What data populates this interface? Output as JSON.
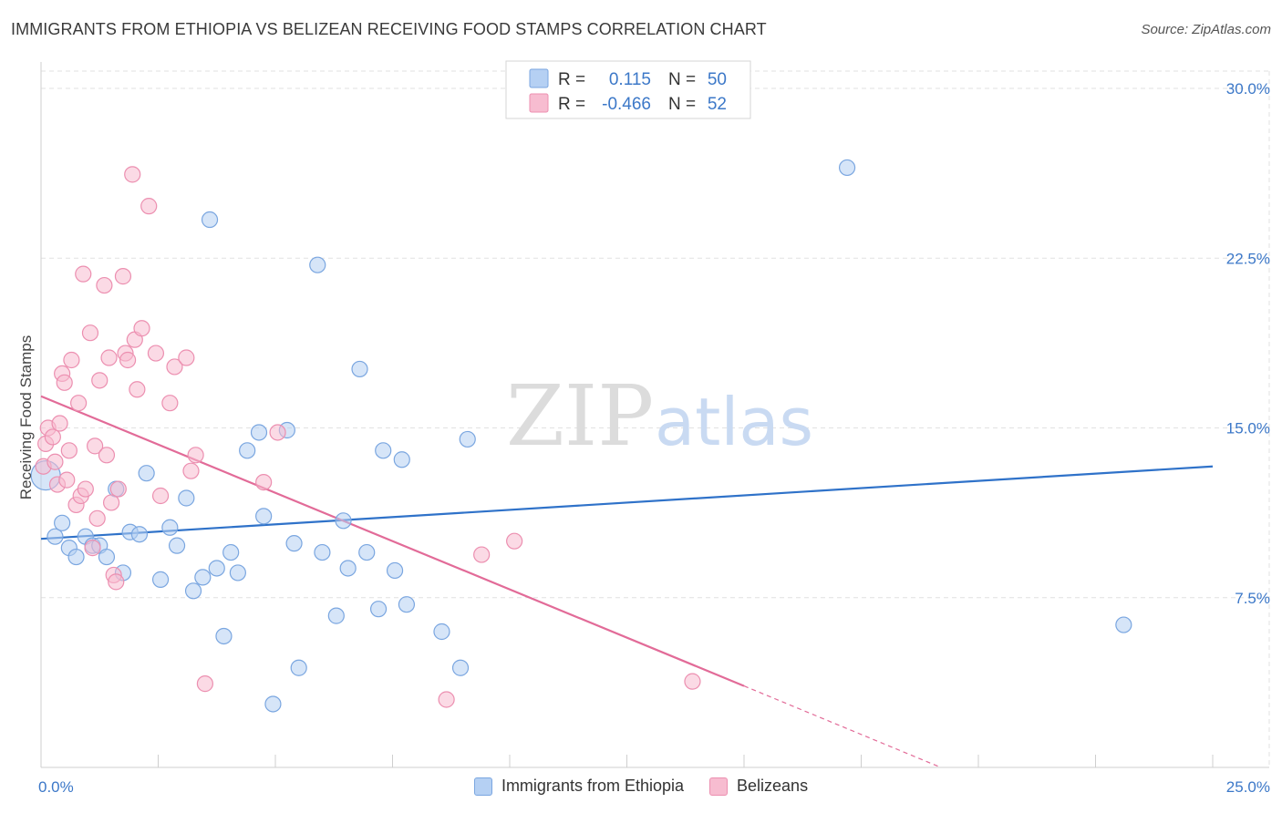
{
  "header": {
    "title": "IMMIGRANTS FROM ETHIOPIA VS BELIZEAN RECEIVING FOOD STAMPS CORRELATION CHART",
    "source": "Source: ZipAtlas.com"
  },
  "watermark": {
    "zip": "ZIP",
    "atlas": "atlas"
  },
  "colors": {
    "blue_fill": "#b5d0f3",
    "blue_stroke": "#7aa6e0",
    "blue_line": "#2f72c9",
    "pink_fill": "#f7bcd0",
    "pink_stroke": "#ec8fb0",
    "pink_line": "#e26b98",
    "tick_label": "#3c78c8",
    "grid": "#e1e1e1"
  },
  "legend": {
    "rows": [
      {
        "r_label": "R =",
        "r_value": "0.115",
        "n_label": "N =",
        "n_value": "50"
      },
      {
        "r_label": "R =",
        "r_value": "-0.466",
        "n_label": "N =",
        "n_value": "52"
      }
    ]
  },
  "chart_data": {
    "type": "scatter",
    "title": "IMMIGRANTS FROM ETHIOPIA VS BELIZEAN RECEIVING FOOD STAMPS CORRELATION CHART",
    "xlabel": "",
    "ylabel": "Receiving Food Stamps",
    "xlim": [
      0,
      25
    ],
    "ylim": [
      0,
      30
    ],
    "x_tick_labels": [
      "0.0%",
      "25.0%"
    ],
    "y_ticks": [
      7.5,
      15.0,
      22.5,
      30.0
    ],
    "y_tick_labels": [
      "7.5%",
      "15.0%",
      "22.5%",
      "30.0%"
    ],
    "grid": true,
    "series": [
      {
        "name": "Immigrants from Ethiopia",
        "r": 0.115,
        "n": 50,
        "trend": {
          "x": [
            0,
            25
          ],
          "y": [
            10.1,
            13.3
          ]
        },
        "points": [
          {
            "x": 0.1,
            "y": 12.9,
            "big": true
          },
          {
            "x": 0.3,
            "y": 10.2
          },
          {
            "x": 0.45,
            "y": 10.8
          },
          {
            "x": 0.6,
            "y": 9.7
          },
          {
            "x": 0.75,
            "y": 9.3
          },
          {
            "x": 0.95,
            "y": 10.2
          },
          {
            "x": 1.1,
            "y": 9.8
          },
          {
            "x": 1.25,
            "y": 9.8
          },
          {
            "x": 1.4,
            "y": 9.3
          },
          {
            "x": 1.6,
            "y": 12.3
          },
          {
            "x": 1.75,
            "y": 8.6
          },
          {
            "x": 1.9,
            "y": 10.4
          },
          {
            "x": 2.1,
            "y": 10.3
          },
          {
            "x": 2.25,
            "y": 13.0
          },
          {
            "x": 2.55,
            "y": 8.3
          },
          {
            "x": 2.75,
            "y": 10.6
          },
          {
            "x": 2.9,
            "y": 9.8
          },
          {
            "x": 3.1,
            "y": 11.9
          },
          {
            "x": 3.25,
            "y": 7.8
          },
          {
            "x": 3.45,
            "y": 8.4
          },
          {
            "x": 3.6,
            "y": 24.2
          },
          {
            "x": 3.75,
            "y": 8.8
          },
          {
            "x": 3.9,
            "y": 5.8
          },
          {
            "x": 4.05,
            "y": 9.5
          },
          {
            "x": 4.2,
            "y": 8.6
          },
          {
            "x": 4.4,
            "y": 14.0
          },
          {
            "x": 4.65,
            "y": 14.8
          },
          {
            "x": 4.75,
            "y": 11.1
          },
          {
            "x": 4.95,
            "y": 2.8
          },
          {
            "x": 5.25,
            "y": 14.9
          },
          {
            "x": 5.4,
            "y": 9.9
          },
          {
            "x": 5.5,
            "y": 4.4
          },
          {
            "x": 5.9,
            "y": 22.2
          },
          {
            "x": 6.0,
            "y": 9.5
          },
          {
            "x": 6.3,
            "y": 6.7
          },
          {
            "x": 6.45,
            "y": 10.9
          },
          {
            "x": 6.55,
            "y": 8.8
          },
          {
            "x": 6.8,
            "y": 17.6
          },
          {
            "x": 6.95,
            "y": 9.5
          },
          {
            "x": 7.2,
            "y": 7.0
          },
          {
            "x": 7.3,
            "y": 14.0
          },
          {
            "x": 7.55,
            "y": 8.7
          },
          {
            "x": 7.7,
            "y": 13.6
          },
          {
            "x": 7.8,
            "y": 7.2
          },
          {
            "x": 8.55,
            "y": 6.0
          },
          {
            "x": 8.95,
            "y": 4.4
          },
          {
            "x": 9.1,
            "y": 14.5
          },
          {
            "x": 17.2,
            "y": 26.5
          },
          {
            "x": 23.1,
            "y": 6.3
          }
        ]
      },
      {
        "name": "Belizeans",
        "r": -0.466,
        "n": 52,
        "trend": {
          "x": [
            0,
            15
          ],
          "y": [
            16.4,
            3.6
          ]
        },
        "trend_dashed": {
          "x": [
            15,
            19.2
          ],
          "y": [
            3.6,
            0.0
          ]
        },
        "points": [
          {
            "x": 0.05,
            "y": 13.3
          },
          {
            "x": 0.1,
            "y": 14.3
          },
          {
            "x": 0.15,
            "y": 15.0
          },
          {
            "x": 0.25,
            "y": 14.6
          },
          {
            "x": 0.3,
            "y": 13.5
          },
          {
            "x": 0.35,
            "y": 12.5
          },
          {
            "x": 0.4,
            "y": 15.2
          },
          {
            "x": 0.45,
            "y": 17.4
          },
          {
            "x": 0.5,
            "y": 17.0
          },
          {
            "x": 0.55,
            "y": 12.7
          },
          {
            "x": 0.6,
            "y": 14.0
          },
          {
            "x": 0.65,
            "y": 18.0
          },
          {
            "x": 0.75,
            "y": 11.6
          },
          {
            "x": 0.8,
            "y": 16.1
          },
          {
            "x": 0.85,
            "y": 12.0
          },
          {
            "x": 0.9,
            "y": 21.8
          },
          {
            "x": 0.95,
            "y": 12.3
          },
          {
            "x": 1.05,
            "y": 19.2
          },
          {
            "x": 1.1,
            "y": 9.7
          },
          {
            "x": 1.15,
            "y": 14.2
          },
          {
            "x": 1.2,
            "y": 11.0
          },
          {
            "x": 1.25,
            "y": 17.1
          },
          {
            "x": 1.35,
            "y": 21.3
          },
          {
            "x": 1.4,
            "y": 13.8
          },
          {
            "x": 1.45,
            "y": 18.1
          },
          {
            "x": 1.5,
            "y": 11.7
          },
          {
            "x": 1.55,
            "y": 8.5
          },
          {
            "x": 1.6,
            "y": 8.2
          },
          {
            "x": 1.65,
            "y": 12.3
          },
          {
            "x": 1.75,
            "y": 21.7
          },
          {
            "x": 1.8,
            "y": 18.3
          },
          {
            "x": 1.85,
            "y": 18.0
          },
          {
            "x": 1.95,
            "y": 26.2
          },
          {
            "x": 2.0,
            "y": 18.9
          },
          {
            "x": 2.05,
            "y": 16.7
          },
          {
            "x": 2.15,
            "y": 19.4
          },
          {
            "x": 2.3,
            "y": 24.8
          },
          {
            "x": 2.45,
            "y": 18.3
          },
          {
            "x": 2.55,
            "y": 12.0
          },
          {
            "x": 2.75,
            "y": 16.1
          },
          {
            "x": 2.85,
            "y": 17.7
          },
          {
            "x": 3.1,
            "y": 18.1
          },
          {
            "x": 3.2,
            "y": 13.1
          },
          {
            "x": 3.3,
            "y": 13.8
          },
          {
            "x": 3.5,
            "y": 3.7
          },
          {
            "x": 4.75,
            "y": 12.6
          },
          {
            "x": 5.05,
            "y": 14.8
          },
          {
            "x": 8.65,
            "y": 3.0
          },
          {
            "x": 9.4,
            "y": 9.4
          },
          {
            "x": 10.1,
            "y": 10.0
          },
          {
            "x": 13.9,
            "y": 3.8
          }
        ]
      }
    ]
  }
}
